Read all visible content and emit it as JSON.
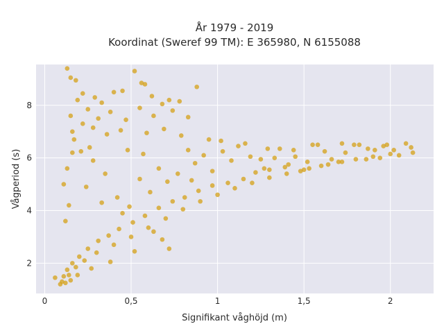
{
  "chart_data": {
    "type": "scatter",
    "title_line1": "År 1979 - 2019",
    "title_line2": "Koordinat (Sweref 99 TM): E 365980, N 6155088",
    "xlabel": "Signifikant våghöjd (m)",
    "ylabel": "Vågperiod (s)",
    "xlim": [
      -0.05,
      2.25
    ],
    "ylim": [
      0.85,
      9.55
    ],
    "x_ticks": [
      0,
      0.5,
      1,
      1.5,
      2
    ],
    "x_tick_labels": [
      "0",
      "0,5",
      "1",
      "1,5",
      "2"
    ],
    "y_ticks": [
      2,
      4,
      6,
      8
    ],
    "y_tick_labels": [
      "2",
      "4",
      "6",
      "8"
    ],
    "marker_color": "#d4a017",
    "plot_bg": "#e5e5ef",
    "grid": true,
    "points": [
      [
        0.13,
        9.4
      ],
      [
        0.15,
        9.05
      ],
      [
        0.18,
        8.95
      ],
      [
        0.52,
        9.3
      ],
      [
        0.56,
        8.85
      ],
      [
        0.58,
        8.8
      ],
      [
        0.88,
        8.7
      ],
      [
        0.19,
        8.2
      ],
      [
        0.22,
        8.45
      ],
      [
        0.29,
        8.3
      ],
      [
        0.4,
        8.5
      ],
      [
        0.33,
        8.1
      ],
      [
        0.45,
        8.55
      ],
      [
        0.62,
        8.35
      ],
      [
        0.72,
        8.2
      ],
      [
        0.78,
        8.15
      ],
      [
        0.68,
        8.05
      ],
      [
        0.15,
        7.6
      ],
      [
        0.25,
        7.85
      ],
      [
        0.31,
        7.5
      ],
      [
        0.38,
        7.75
      ],
      [
        0.47,
        7.45
      ],
      [
        0.55,
        7.9
      ],
      [
        0.63,
        7.6
      ],
      [
        0.74,
        7.8
      ],
      [
        0.83,
        7.55
      ],
      [
        0.16,
        7.0
      ],
      [
        0.28,
        7.15
      ],
      [
        0.36,
        6.9
      ],
      [
        0.44,
        7.05
      ],
      [
        0.59,
        6.95
      ],
      [
        0.69,
        7.1
      ],
      [
        0.79,
        6.85
      ],
      [
        0.95,
        6.7
      ],
      [
        1.02,
        6.65
      ],
      [
        1.12,
        6.45
      ],
      [
        1.16,
        6.55
      ],
      [
        1.29,
        6.35
      ],
      [
        1.36,
        6.35
      ],
      [
        1.44,
        6.3
      ],
      [
        1.55,
        6.5
      ],
      [
        1.58,
        6.5
      ],
      [
        1.72,
        6.55
      ],
      [
        1.79,
        6.5
      ],
      [
        1.82,
        6.5
      ],
      [
        1.91,
        6.3
      ],
      [
        1.96,
        6.45
      ],
      [
        2.02,
        6.3
      ],
      [
        2.09,
        6.55
      ],
      [
        2.13,
        6.2
      ],
      [
        2.12,
        6.4
      ],
      [
        2.05,
        6.1
      ],
      [
        1.94,
        6.0
      ],
      [
        1.86,
        5.95
      ],
      [
        1.72,
        5.85
      ],
      [
        1.64,
        5.75
      ],
      [
        1.53,
        5.6
      ],
      [
        1.48,
        5.5
      ],
      [
        1.41,
        5.75
      ],
      [
        1.3,
        5.55
      ],
      [
        1.22,
        5.45
      ],
      [
        1.15,
        5.2
      ],
      [
        1.06,
        5.05
      ],
      [
        0.97,
        4.95
      ],
      [
        0.89,
        4.75
      ],
      [
        0.81,
        4.5
      ],
      [
        0.74,
        4.35
      ],
      [
        0.66,
        4.1
      ],
      [
        0.58,
        3.8
      ],
      [
        0.51,
        3.55
      ],
      [
        0.43,
        3.3
      ],
      [
        0.37,
        3.05
      ],
      [
        0.31,
        2.85
      ],
      [
        0.25,
        2.55
      ],
      [
        0.2,
        2.25
      ],
      [
        0.16,
        2.0
      ],
      [
        0.13,
        1.75
      ],
      [
        0.11,
        1.5
      ],
      [
        0.1,
        1.3
      ],
      [
        0.09,
        1.2
      ],
      [
        0.06,
        1.45
      ],
      [
        0.12,
        1.25
      ],
      [
        0.14,
        1.55
      ],
      [
        0.18,
        1.85
      ],
      [
        0.23,
        2.1
      ],
      [
        0.3,
        2.4
      ],
      [
        0.4,
        2.7
      ],
      [
        0.5,
        3.0
      ],
      [
        0.6,
        3.35
      ],
      [
        0.7,
        3.7
      ],
      [
        0.8,
        4.05
      ],
      [
        0.9,
        4.35
      ],
      [
        1.0,
        4.6
      ],
      [
        1.1,
        4.85
      ],
      [
        1.2,
        5.05
      ],
      [
        1.3,
        5.25
      ],
      [
        1.4,
        5.4
      ],
      [
        1.5,
        5.55
      ],
      [
        1.6,
        5.7
      ],
      [
        1.7,
        5.85
      ],
      [
        1.8,
        5.95
      ],
      [
        1.9,
        6.05
      ],
      [
        2.0,
        6.15
      ],
      [
        0.42,
        4.5
      ],
      [
        0.55,
        5.2
      ],
      [
        0.66,
        5.6
      ],
      [
        0.77,
        5.4
      ],
      [
        0.87,
        5.8
      ],
      [
        0.97,
        5.5
      ],
      [
        1.08,
        5.9
      ],
      [
        1.19,
        6.05
      ],
      [
        1.25,
        5.95
      ],
      [
        0.35,
        5.4
      ],
      [
        0.28,
        5.9
      ],
      [
        0.21,
        6.25
      ],
      [
        0.17,
        6.7
      ],
      [
        0.24,
        4.9
      ],
      [
        0.33,
        4.3
      ],
      [
        0.45,
        3.9
      ],
      [
        0.63,
        3.2
      ],
      [
        0.72,
        2.55
      ],
      [
        0.68,
        2.9
      ],
      [
        0.52,
        2.45
      ],
      [
        0.38,
        2.05
      ],
      [
        0.27,
        1.8
      ],
      [
        0.19,
        1.55
      ],
      [
        0.15,
        1.35
      ],
      [
        0.12,
        3.6
      ],
      [
        0.14,
        4.2
      ],
      [
        0.11,
        5.0
      ],
      [
        0.13,
        5.6
      ],
      [
        0.16,
        6.2
      ],
      [
        0.22,
        7.3
      ],
      [
        0.26,
        6.4
      ],
      [
        0.48,
        6.3
      ],
      [
        0.57,
        6.15
      ],
      [
        0.83,
        6.3
      ],
      [
        0.92,
        6.1
      ],
      [
        1.03,
        6.25
      ],
      [
        0.61,
        4.7
      ],
      [
        0.71,
        5.1
      ],
      [
        0.85,
        5.15
      ],
      [
        0.49,
        4.15
      ],
      [
        1.33,
        6.0
      ],
      [
        1.45,
        6.05
      ],
      [
        1.62,
        6.25
      ],
      [
        1.74,
        6.2
      ],
      [
        1.87,
        6.35
      ],
      [
        1.98,
        6.5
      ],
      [
        1.66,
        5.95
      ],
      [
        1.52,
        5.85
      ],
      [
        1.39,
        5.65
      ],
      [
        1.27,
        5.6
      ]
    ]
  }
}
